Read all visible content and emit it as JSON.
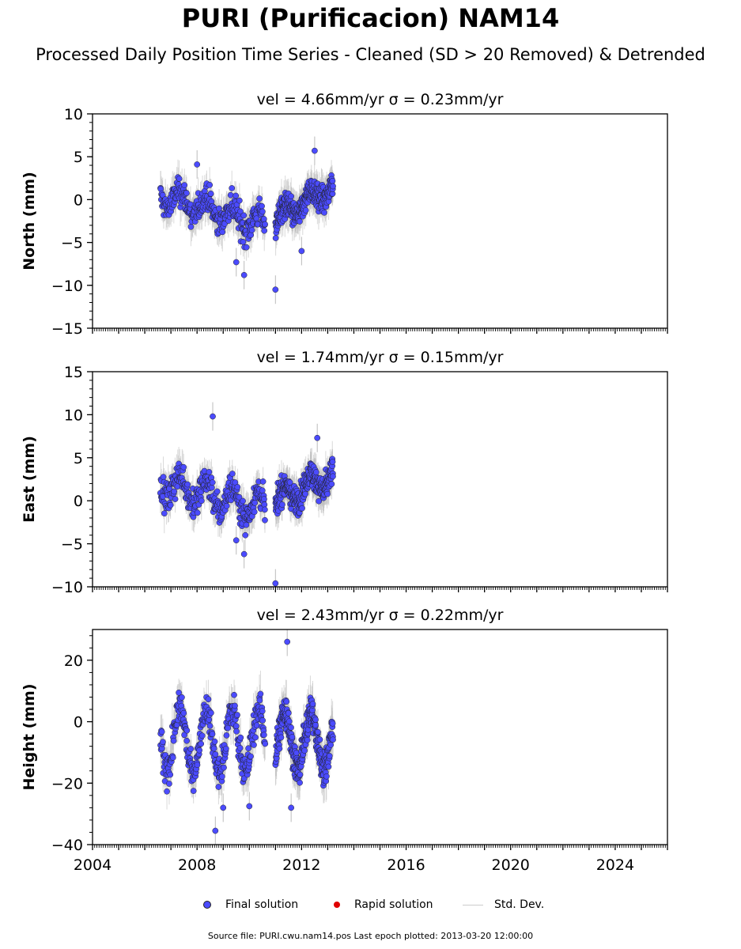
{
  "title": "PURI (Purificacion) NAM14",
  "subtitle": "Processed Daily Position Time Series - Cleaned (SD > 20 Removed) & Detrended",
  "legend": {
    "final": "Final solution",
    "rapid": "Rapid solution",
    "std": "Std. Dev."
  },
  "source": "Source file: PURI.cwu.nam14.pos  Last epoch plotted: 2013-03-20 12:00:00",
  "colors": {
    "final": "#4b4bff",
    "rapid": "#e00000",
    "std": "#bbbbbb",
    "edge": "#222222"
  },
  "chart_data": [
    {
      "type": "scatter",
      "title": "vel = 4.66mm/yr   σ = 0.23mm/yr",
      "ylabel": "North (mm)",
      "xlim": [
        2004,
        2026
      ],
      "ylim": [
        -15,
        10
      ],
      "yticks": [
        10,
        5,
        0,
        -5,
        -10,
        -15
      ],
      "ytick_labels": [
        "10",
        "5",
        "0",
        "−5",
        "−10",
        "−15"
      ],
      "grid": false,
      "segments": [
        {
          "x": [
            2006.6,
            2010.6
          ],
          "trend": [
            0.5,
            -3.0
          ],
          "amp": 1.2,
          "noise": 1.4
        },
        {
          "x": [
            2011.0,
            2013.2
          ],
          "trend": [
            -2.3,
            1.6
          ],
          "amp": 1.0,
          "noise": 1.3
        }
      ],
      "outliers": [
        [
          2009.8,
          -8.8
        ],
        [
          2011.0,
          -10.5
        ],
        [
          2009.5,
          -7.3
        ],
        [
          2012.5,
          5.7
        ],
        [
          2008.0,
          4.1
        ],
        [
          2012.0,
          -6.0
        ]
      ]
    },
    {
      "type": "scatter",
      "title": "vel = 1.74mm/yr   σ = 0.15mm/yr",
      "ylabel": "East (mm)",
      "xlim": [
        2004,
        2026
      ],
      "ylim": [
        -10,
        15
      ],
      "yticks": [
        15,
        10,
        5,
        0,
        -5,
        -10
      ],
      "ytick_labels": [
        "15",
        "10",
        "5",
        "0",
        "−5",
        "−10"
      ],
      "grid": false,
      "segments": [
        {
          "x": [
            2006.6,
            2010.6
          ],
          "trend": [
            2.0,
            -0.8
          ],
          "amp": 1.6,
          "noise": 1.4
        },
        {
          "x": [
            2011.0,
            2013.2
          ],
          "trend": [
            0.0,
            3.0
          ],
          "amp": 1.2,
          "noise": 1.3
        }
      ],
      "outliers": [
        [
          2008.6,
          9.8
        ],
        [
          2009.8,
          -6.2
        ],
        [
          2011.0,
          -9.6
        ],
        [
          2012.6,
          7.3
        ],
        [
          2009.5,
          -4.6
        ]
      ]
    },
    {
      "type": "scatter",
      "title": "vel = 2.43mm/yr   σ = 0.22mm/yr",
      "xlabel": "",
      "ylabel": "Height (mm)",
      "xlim": [
        2004,
        2026
      ],
      "ylim": [
        -40,
        30
      ],
      "xticks": [
        2004,
        2008,
        2012,
        2016,
        2020,
        2024
      ],
      "yticks": [
        20,
        0,
        -20,
        -40
      ],
      "ytick_labels": [
        "20",
        "0",
        "−20",
        "−40"
      ],
      "grid": false,
      "segments": [
        {
          "x": [
            2006.6,
            2010.6
          ],
          "trend": [
            -6,
            -6
          ],
          "amp": 10,
          "noise": 4.5
        },
        {
          "x": [
            2011.0,
            2013.2
          ],
          "trend": [
            -6,
            -6
          ],
          "amp": 9,
          "noise": 4.5
        }
      ],
      "outliers": [
        [
          2011.45,
          26.0
        ],
        [
          2008.7,
          -35.5
        ],
        [
          2011.6,
          -28.0
        ],
        [
          2009.0,
          -28.0
        ],
        [
          2010.0,
          -27.5
        ]
      ]
    }
  ]
}
